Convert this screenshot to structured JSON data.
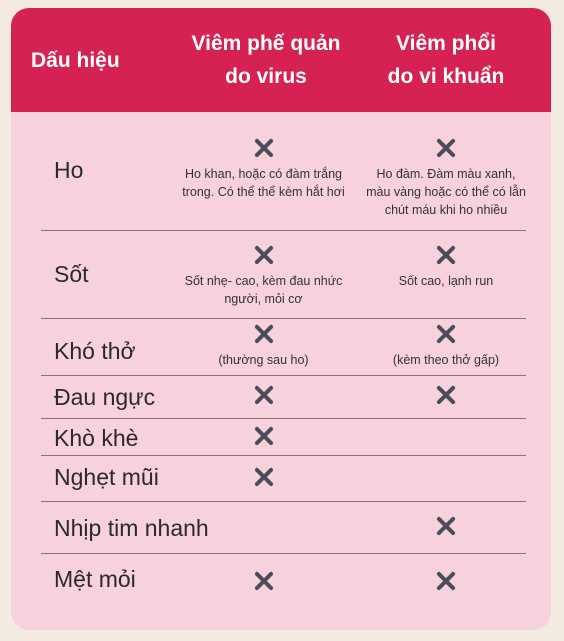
{
  "header": {
    "sign_label": "Dấu hiệu",
    "viral_line1": "Viêm phế quản",
    "viral_line2": "do virus",
    "bacterial_line1": "Viêm phổi",
    "bacterial_line2": "do vi khuẩn"
  },
  "rows": [
    {
      "sign": "Ho",
      "viral": {
        "mark": true,
        "note": "Ho khan, hoặc có đàm trắng trong. Có thể thể kèm hắt hơi"
      },
      "bacterial": {
        "mark": true,
        "note": "Ho đàm. Đàm màu xanh, màu vàng hoặc có thể có lẫn chút máu khi ho nhiều"
      }
    },
    {
      "sign": "Sốt",
      "viral": {
        "mark": true,
        "note": "Sốt nhẹ- cao, kèm đau nhức người, mỏi cơ"
      },
      "bacterial": {
        "mark": true,
        "note": "Sốt cao, lạnh run"
      }
    },
    {
      "sign": "Khó thở",
      "viral": {
        "mark": true,
        "note": "(thường sau ho)"
      },
      "bacterial": {
        "mark": true,
        "note": "(kèm theo thở gấp)"
      }
    },
    {
      "sign": "Đau ngực",
      "viral": {
        "mark": true,
        "note": ""
      },
      "bacterial": {
        "mark": true,
        "note": ""
      }
    },
    {
      "sign": "Khò khè",
      "viral": {
        "mark": true,
        "note": ""
      },
      "bacterial": {
        "mark": false,
        "note": ""
      }
    },
    {
      "sign": "Nghẹt mũi",
      "viral": {
        "mark": true,
        "note": ""
      },
      "bacterial": {
        "mark": false,
        "note": ""
      }
    },
    {
      "sign": "Nhịp tim nhanh",
      "viral": {
        "mark": false,
        "note": ""
      },
      "bacterial": {
        "mark": true,
        "note": ""
      }
    },
    {
      "sign": "Mệt mỏi",
      "viral": {
        "mark": true,
        "note": ""
      },
      "bacterial": {
        "mark": true,
        "note": ""
      }
    }
  ],
  "icons": {
    "check": "x-mark-icon"
  },
  "colors": {
    "header_bg": "#d62252",
    "body_bg": "#f7d1dc",
    "mark": "#4a4e5a",
    "page_bg": "#f3ebe2"
  }
}
